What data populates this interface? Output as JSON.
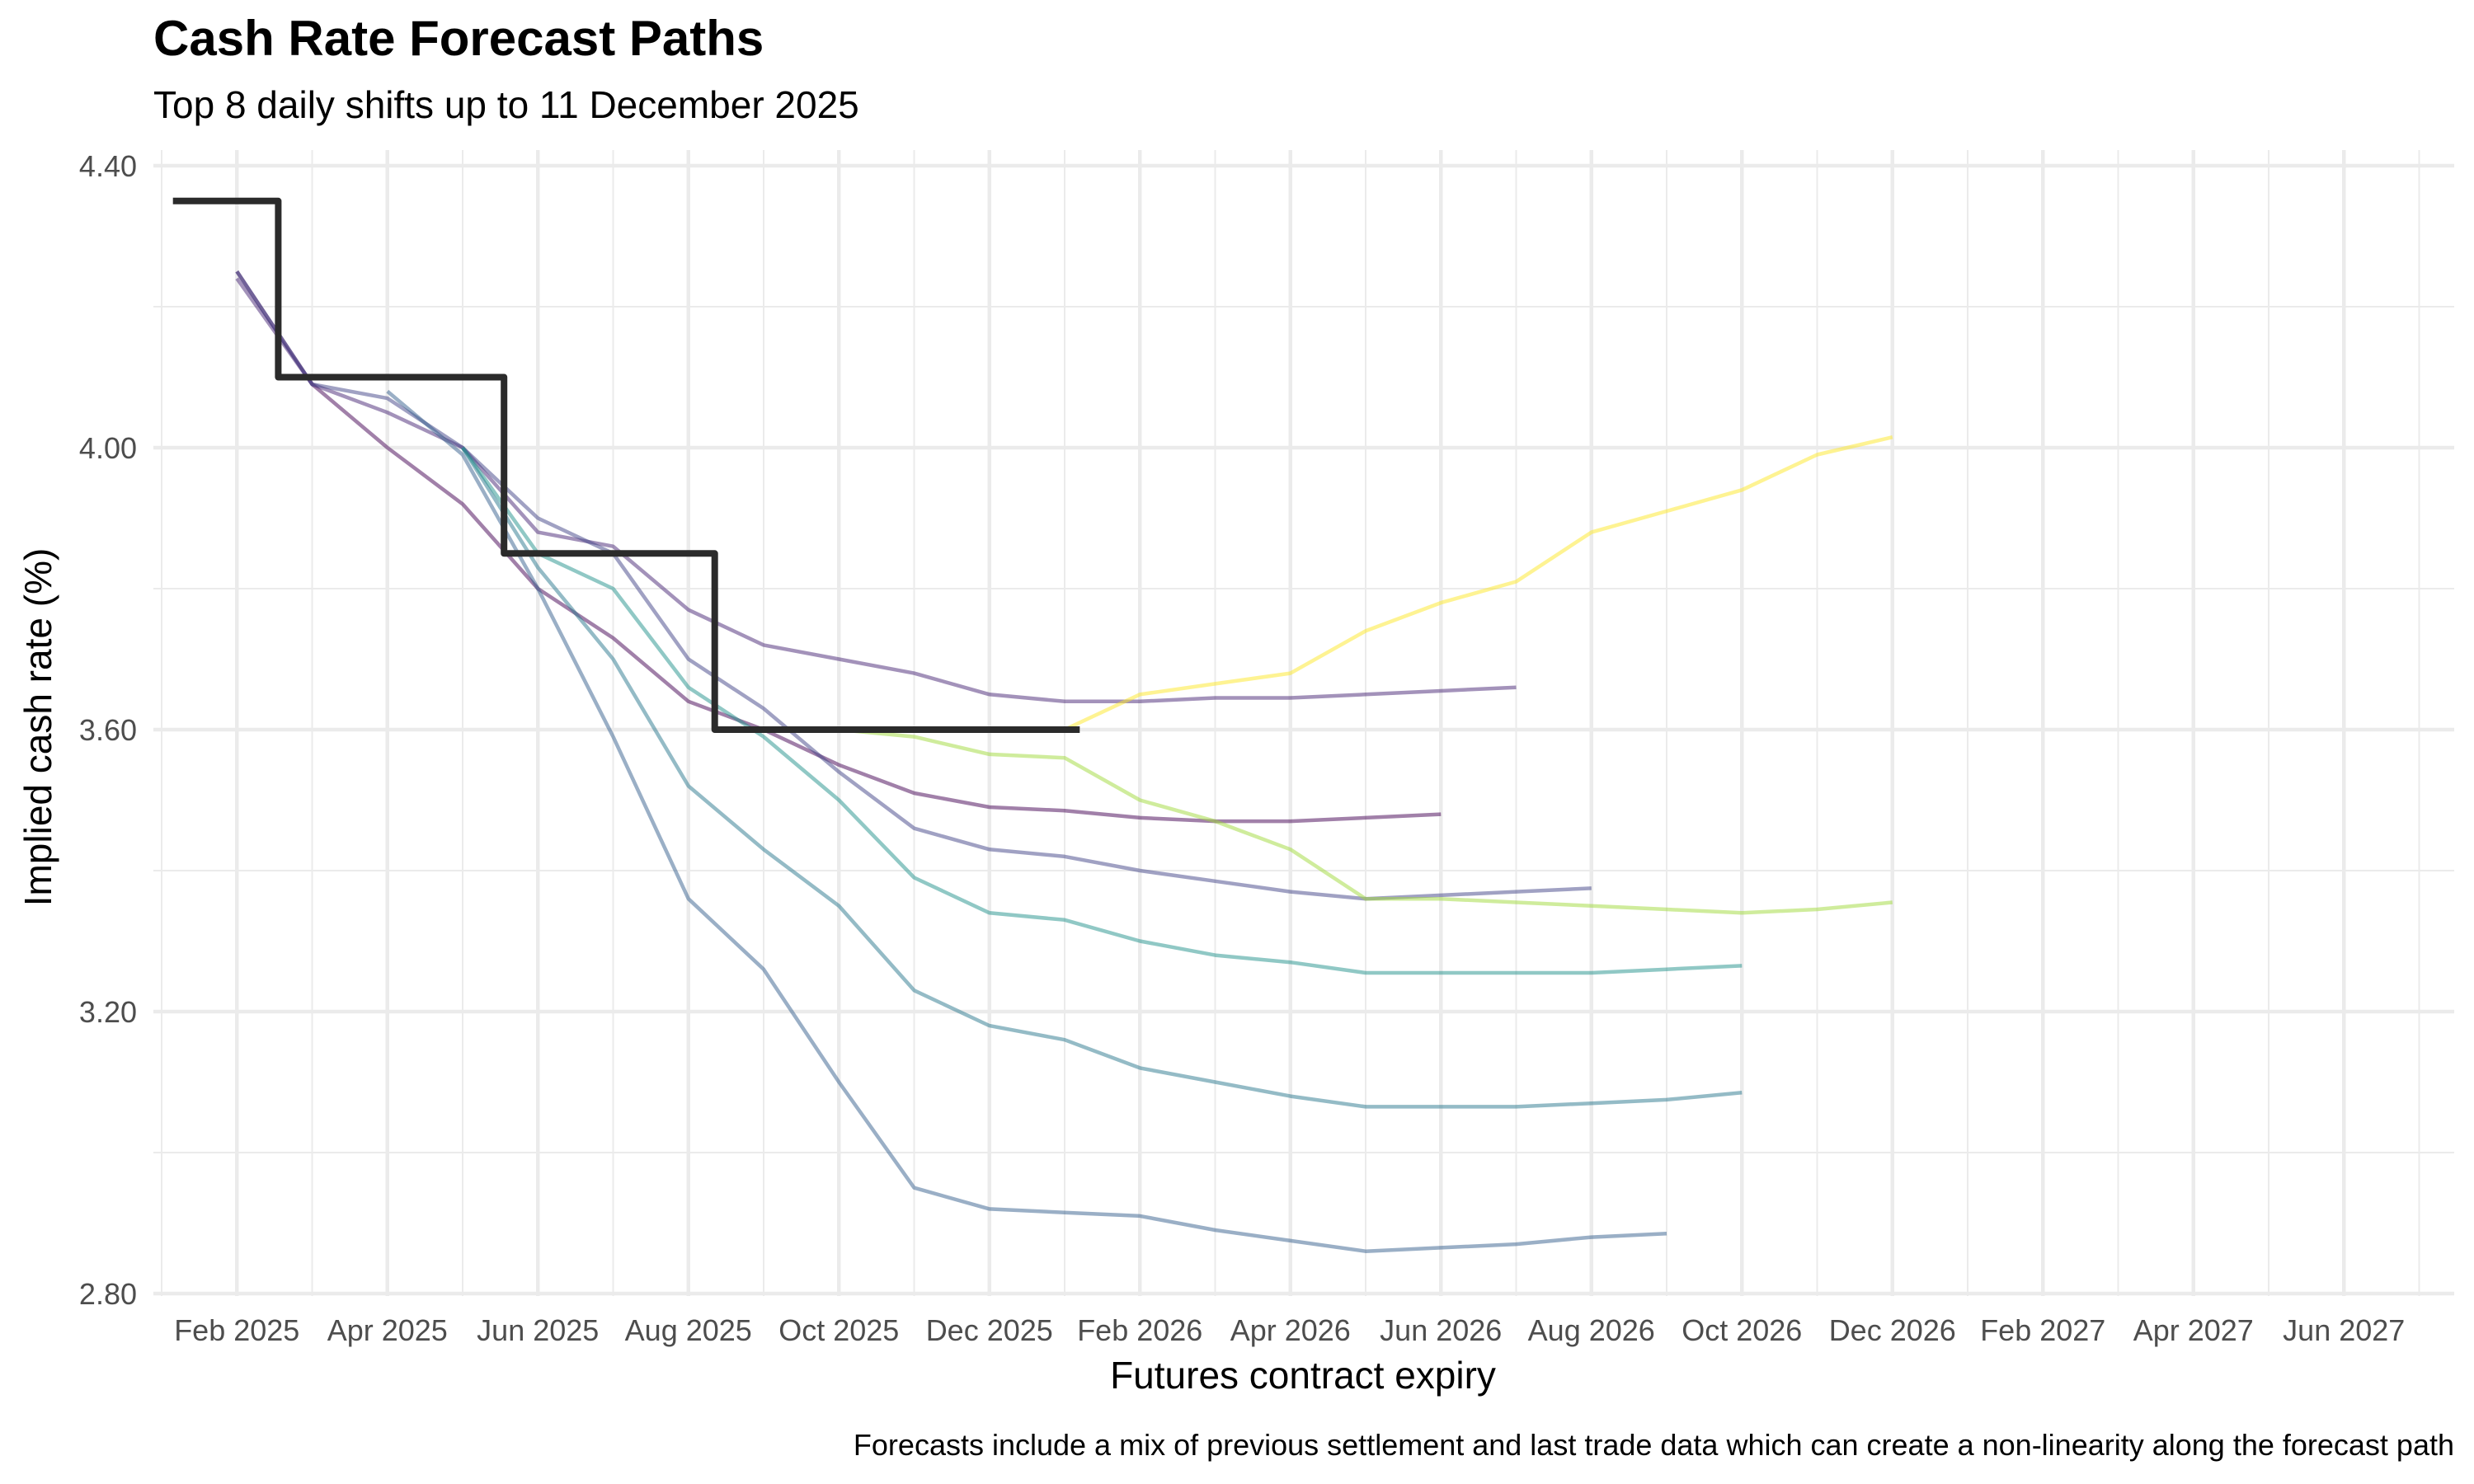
{
  "title": "Cash Rate Forecast Paths",
  "subtitle": "Top 8 daily shifts up to 11 December 2025",
  "caption": "Forecasts include a mix of previous settlement and last trade data which can create a non-linearity along the forecast path",
  "chart_data": {
    "type": "line",
    "title": "Cash Rate Forecast Paths",
    "subtitle": "Top 8 daily shifts up to 11 December 2025",
    "xlabel": "Futures contract expiry",
    "ylabel": "Implied cash rate (%)",
    "x_unit": "months since Jan 2025 (0 = Jan 2025)",
    "xlim": [
      -0.2,
      31.5
    ],
    "ylim": [
      2.8,
      4.4
    ],
    "y_ticks": [
      2.8,
      3.2,
      3.6,
      4.0,
      4.4
    ],
    "y_tick_labels": [
      "2.80",
      "3.20",
      "3.60",
      "4.00",
      "4.40"
    ],
    "x_ticks": [
      1,
      3,
      5,
      7,
      9,
      11,
      13,
      15,
      17,
      19,
      21,
      23,
      25,
      27,
      29
    ],
    "x_tick_labels": [
      "Feb 2025",
      "Apr 2025",
      "Jun 2025",
      "Aug 2025",
      "Oct 2025",
      "Dec 2025",
      "Feb 2026",
      "Apr 2026",
      "Jun 2026",
      "Aug 2026",
      "Oct 2026",
      "Dec 2026",
      "Feb 2027",
      "Apr 2027",
      "Jun 2027"
    ],
    "grid": true,
    "legend": "none",
    "actual_cash_rate": {
      "name": "Cash rate (actual)",
      "color": "#2b2b2b",
      "step_points": [
        {
          "x": 0.15,
          "y": 4.35
        },
        {
          "x": 1.55,
          "y": 4.35
        },
        {
          "x": 1.55,
          "y": 4.1
        },
        {
          "x": 4.55,
          "y": 4.1
        },
        {
          "x": 4.55,
          "y": 3.85
        },
        {
          "x": 7.35,
          "y": 3.85
        },
        {
          "x": 7.35,
          "y": 3.6
        },
        {
          "x": 12.2,
          "y": 3.6
        }
      ]
    },
    "series": [
      {
        "name": "path-1",
        "color": "#440154",
        "x": [
          1,
          2,
          3,
          4,
          5,
          6,
          7,
          8,
          9,
          10,
          11,
          12,
          13,
          14,
          15,
          16,
          17
        ],
        "values": [
          4.25,
          4.09,
          4.0,
          3.92,
          3.8,
          3.73,
          3.64,
          3.6,
          3.55,
          3.51,
          3.49,
          3.485,
          3.475,
          3.47,
          3.47,
          3.475,
          3.48
        ]
      },
      {
        "name": "path-2",
        "color": "#482576",
        "x": [
          1,
          2,
          3,
          4,
          5,
          6,
          7,
          8,
          9,
          10,
          11,
          12,
          13,
          14,
          15,
          16,
          17,
          18
        ],
        "values": [
          4.24,
          4.09,
          4.05,
          4.0,
          3.88,
          3.86,
          3.77,
          3.72,
          3.7,
          3.68,
          3.65,
          3.64,
          3.64,
          3.645,
          3.645,
          3.65,
          3.655,
          3.66
        ]
      },
      {
        "name": "path-3",
        "color": "#414487",
        "x": [
          1,
          2,
          3,
          4,
          5,
          6,
          7,
          8,
          9,
          10,
          11,
          12,
          13,
          14,
          15,
          16,
          17,
          18,
          19
        ],
        "values": [
          4.25,
          4.09,
          4.07,
          4.0,
          3.9,
          3.85,
          3.7,
          3.63,
          3.54,
          3.46,
          3.43,
          3.42,
          3.4,
          3.385,
          3.37,
          3.36,
          3.365,
          3.37,
          3.375
        ]
      },
      {
        "name": "path-4",
        "color": "#35608d",
        "x": [
          3,
          4,
          5,
          6,
          7,
          8,
          9,
          10,
          11,
          12,
          13,
          14,
          15,
          16,
          17,
          18,
          19,
          20
        ],
        "values": [
          4.08,
          3.99,
          3.8,
          3.59,
          3.36,
          3.26,
          3.1,
          2.95,
          2.92,
          2.915,
          2.91,
          2.89,
          2.875,
          2.86,
          2.865,
          2.87,
          2.88,
          2.885
        ]
      },
      {
        "name": "path-5",
        "color": "#2a788e",
        "x": [
          4,
          5,
          6,
          7,
          8,
          9,
          10,
          11,
          12,
          13,
          14,
          15,
          16,
          17,
          18,
          19,
          20,
          21
        ],
        "values": [
          4.0,
          3.83,
          3.7,
          3.52,
          3.43,
          3.35,
          3.23,
          3.18,
          3.16,
          3.12,
          3.1,
          3.08,
          3.065,
          3.065,
          3.065,
          3.07,
          3.075,
          3.085
        ]
      },
      {
        "name": "path-6",
        "color": "#21918c",
        "x": [
          4,
          5,
          6,
          7,
          8,
          9,
          10,
          11,
          12,
          13,
          14,
          15,
          16,
          17,
          18,
          19,
          20,
          21
        ],
        "values": [
          4.0,
          3.85,
          3.8,
          3.66,
          3.59,
          3.5,
          3.39,
          3.34,
          3.33,
          3.3,
          3.28,
          3.27,
          3.255,
          3.255,
          3.255,
          3.255,
          3.26,
          3.265
        ]
      },
      {
        "name": "path-7",
        "color": "#a0da39",
        "x": [
          9,
          10,
          11,
          12,
          13,
          14,
          15,
          16,
          17,
          18,
          19,
          20,
          21,
          22,
          23
        ],
        "values": [
          3.6,
          3.59,
          3.565,
          3.56,
          3.5,
          3.47,
          3.43,
          3.36,
          3.36,
          3.355,
          3.35,
          3.345,
          3.34,
          3.345,
          3.355
        ]
      },
      {
        "name": "path-8",
        "color": "#fde725",
        "x": [
          11,
          12,
          13,
          14,
          15,
          16,
          17,
          18,
          19,
          20,
          21,
          22,
          23
        ],
        "values": [
          3.6,
          3.6,
          3.65,
          3.665,
          3.68,
          3.74,
          3.78,
          3.81,
          3.88,
          3.91,
          3.94,
          3.99,
          4.015
        ]
      }
    ]
  }
}
